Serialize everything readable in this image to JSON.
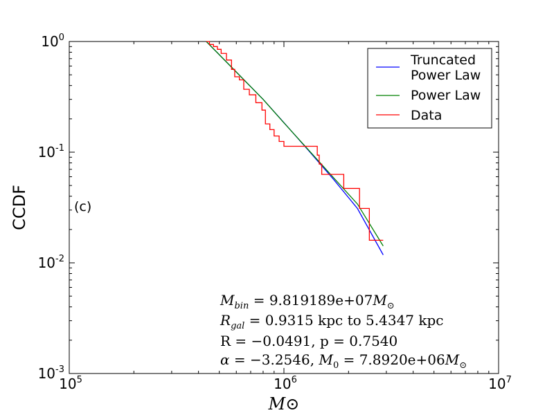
{
  "chart_data": {
    "type": "line",
    "xscale": "log",
    "yscale": "log",
    "xlim": [
      100000,
      10000000
    ],
    "ylim": [
      0.001,
      1
    ],
    "x_ticks": [
      {
        "value": 100000,
        "base": "10",
        "exp": "5"
      },
      {
        "value": 1000000,
        "base": "10",
        "exp": "6"
      },
      {
        "value": 10000000,
        "base": "10",
        "exp": "7"
      }
    ],
    "y_ticks": [
      {
        "value": 0.001,
        "base": "10",
        "exp": "-3"
      },
      {
        "value": 0.01,
        "base": "10",
        "exp": "-2"
      },
      {
        "value": 0.1,
        "base": "10",
        "exp": "-1"
      },
      {
        "value": 1,
        "base": "10",
        "exp": "0"
      }
    ],
    "ylabel": "CCDF",
    "xlabel": "M⊙",
    "panel_label": "(c)",
    "legend": {
      "placement": "top-right",
      "entries": [
        {
          "label_lines": [
            "Truncated",
            "Power Law"
          ],
          "color": "#0000ff"
        },
        {
          "label_lines": [
            "Power Law"
          ],
          "color": "#008000"
        },
        {
          "label_lines": [
            "Data"
          ],
          "color": "#ff0000"
        }
      ]
    },
    "annotations": {
      "mbin": {
        "sym": "M",
        "sub": "bin",
        "eq": " = ",
        "val": "9.819189e+07",
        "unit": "M",
        "unit_sub": "⊙"
      },
      "rgal": {
        "sym": "R",
        "sub": "gal",
        "eq": " = ",
        "val": "0.9315 kpc to 5.4347 kpc"
      },
      "rp": "R = −0.0491, p = 0.7540",
      "alpha": {
        "sym": "α",
        "eq1": " = −3.2546, ",
        "m0": "M",
        "m0_sub": "0",
        "eq2": " = 7.8920e+06",
        "unit": "M",
        "unit_sub": "⊙"
      }
    },
    "series": [
      {
        "name": "Truncated Power Law",
        "color": "#0000ff",
        "x": [
          435000,
          600000,
          800000,
          1000000,
          1300000,
          1700000,
          2200000,
          2900000
        ],
        "y": [
          1.0,
          0.53,
          0.3,
          0.185,
          0.104,
          0.057,
          0.031,
          0.0118
        ]
      },
      {
        "name": "Power Law",
        "color": "#008000",
        "x": [
          435000,
          600000,
          800000,
          1000000,
          1300000,
          1700000,
          2200000,
          2900000
        ],
        "y": [
          1.0,
          0.53,
          0.3,
          0.184,
          0.105,
          0.059,
          0.034,
          0.0142
        ]
      },
      {
        "name": "Data",
        "color": "#ff0000",
        "step": true,
        "x": [
          435000,
          450000,
          470000,
          490000,
          510000,
          540000,
          570000,
          590000,
          620000,
          650000,
          690000,
          740000,
          790000,
          820000,
          860000,
          900000,
          950000,
          1000000,
          1430000,
          1460000,
          1500000,
          1900000,
          2250000,
          2500000,
          2900000
        ],
        "y": [
          1.0,
          0.94,
          0.9,
          0.85,
          0.78,
          0.68,
          0.56,
          0.48,
          0.45,
          0.37,
          0.33,
          0.28,
          0.24,
          0.18,
          0.16,
          0.14,
          0.125,
          0.113,
          0.094,
          0.078,
          0.063,
          0.047,
          0.031,
          0.016,
          0.016
        ]
      }
    ]
  }
}
